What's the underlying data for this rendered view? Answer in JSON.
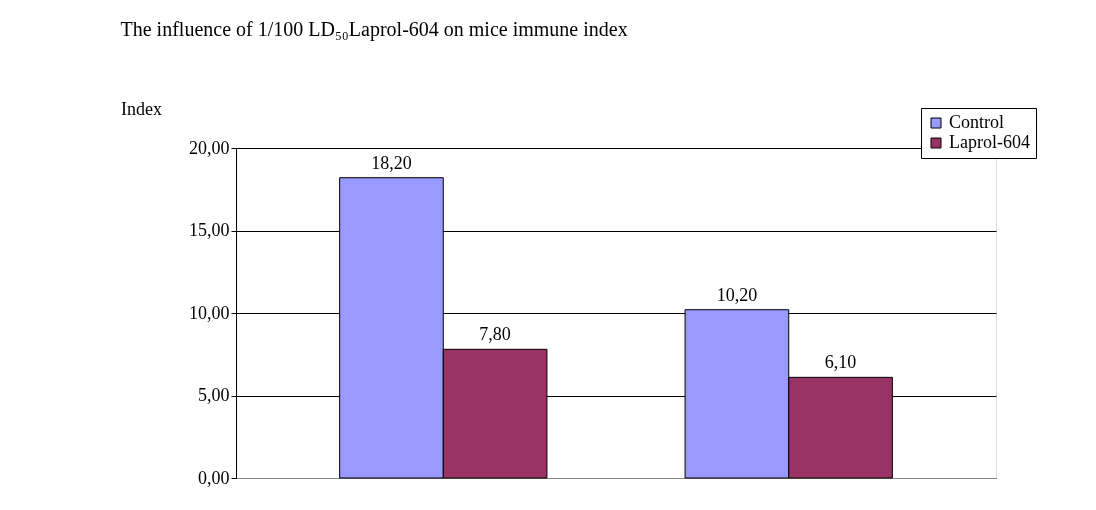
{
  "chart_data": {
    "type": "bar",
    "title": "The influence of 1/100 LD₅₀Laprol-604 on mice immune index",
    "ylabel": "Index",
    "categories": [
      null,
      null
    ],
    "series": [
      {
        "name": "Control",
        "color": "#9999ff",
        "values": [
          18.2,
          10.2
        ],
        "value_labels": [
          "18,20",
          "10,20"
        ]
      },
      {
        "name": "Laprol-604",
        "color": "#993366",
        "values": [
          7.8,
          6.1
        ],
        "value_labels": [
          "7,80",
          "6,10"
        ]
      }
    ],
    "ylim": [
      0,
      20
    ],
    "yticks": [
      {
        "value": 0,
        "label": "0,00"
      },
      {
        "value": 5,
        "label": "5,00"
      },
      {
        "value": 10,
        "label": "10,00"
      },
      {
        "value": 15,
        "label": "15,00"
      },
      {
        "value": 20,
        "label": "20,00"
      }
    ],
    "grid": "y",
    "legend": "top right",
    "tick_labels": "y"
  }
}
